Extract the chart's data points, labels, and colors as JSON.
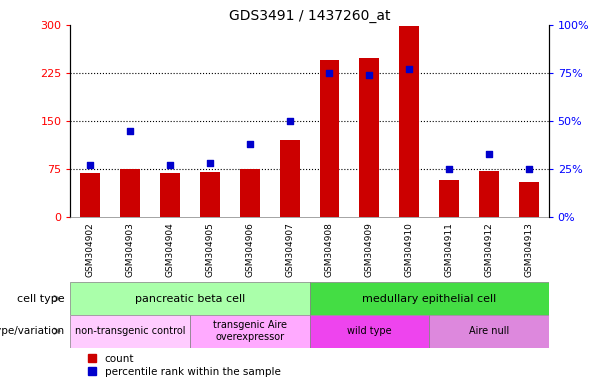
{
  "title": "GDS3491 / 1437260_at",
  "samples": [
    "GSM304902",
    "GSM304903",
    "GSM304904",
    "GSM304905",
    "GSM304906",
    "GSM304907",
    "GSM304908",
    "GSM304909",
    "GSM304910",
    "GSM304911",
    "GSM304912",
    "GSM304913"
  ],
  "counts": [
    68,
    75,
    68,
    70,
    75,
    120,
    245,
    248,
    298,
    58,
    72,
    55
  ],
  "percentiles": [
    27,
    45,
    27,
    28,
    38,
    50,
    75,
    74,
    77,
    25,
    33,
    25
  ],
  "left_ylim": [
    0,
    300
  ],
  "right_ylim": [
    0,
    100
  ],
  "left_yticks": [
    0,
    75,
    150,
    225,
    300
  ],
  "right_yticks": [
    0,
    25,
    50,
    75,
    100
  ],
  "right_yticklabels": [
    "0%",
    "25%",
    "50%",
    "75%",
    "100%"
  ],
  "bar_color": "#cc0000",
  "dot_color": "#0000cc",
  "xtick_bg": "#cccccc",
  "cell_type_groups": [
    {
      "label": "pancreatic beta cell",
      "start": 0,
      "end": 6,
      "color": "#aaffaa"
    },
    {
      "label": "medullary epithelial cell",
      "start": 6,
      "end": 12,
      "color": "#44dd44"
    }
  ],
  "genotype_groups": [
    {
      "label": "non-transgenic control",
      "start": 0,
      "end": 3,
      "color": "#ffccff"
    },
    {
      "label": "transgenic Aire\noverexpressor",
      "start": 3,
      "end": 6,
      "color": "#ffaaff"
    },
    {
      "label": "wild type",
      "start": 6,
      "end": 9,
      "color": "#ee44ee"
    },
    {
      "label": "Aire null",
      "start": 9,
      "end": 12,
      "color": "#dd88dd"
    }
  ],
  "legend_items": [
    {
      "label": "count",
      "color": "#cc0000"
    },
    {
      "label": "percentile rank within the sample",
      "color": "#0000cc"
    }
  ],
  "hgrid_values": [
    75,
    150,
    225
  ],
  "title_fontsize": 10
}
